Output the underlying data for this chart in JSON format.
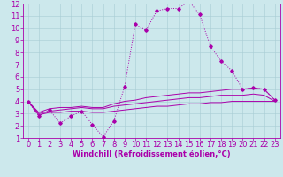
{
  "title": "",
  "xlabel": "Windchill (Refroidissement éolien,°C)",
  "ylabel": "",
  "bg_color": "#cce8ec",
  "line_color": "#aa00aa",
  "xlim": [
    -0.5,
    23.5
  ],
  "ylim": [
    1,
    12
  ],
  "xticks": [
    0,
    1,
    2,
    3,
    4,
    5,
    6,
    7,
    8,
    9,
    10,
    11,
    12,
    13,
    14,
    15,
    16,
    17,
    18,
    19,
    20,
    21,
    22,
    23
  ],
  "yticks": [
    1,
    2,
    3,
    4,
    5,
    6,
    7,
    8,
    9,
    10,
    11,
    12
  ],
  "line1_x": [
    0,
    1,
    2,
    3,
    4,
    5,
    6,
    7,
    8,
    9,
    10,
    11,
    12,
    13,
    14,
    15,
    16,
    17,
    18,
    19,
    20,
    21,
    22,
    23
  ],
  "line1_y": [
    4.0,
    2.8,
    3.3,
    2.2,
    2.8,
    3.2,
    2.1,
    1.1,
    2.4,
    5.2,
    10.3,
    9.8,
    11.4,
    11.6,
    11.6,
    12.2,
    11.1,
    8.5,
    7.3,
    6.5,
    5.0,
    5.1,
    5.0,
    4.1
  ],
  "line2_x": [
    0,
    1,
    2,
    3,
    4,
    5,
    6,
    7,
    8,
    9,
    10,
    11,
    12,
    13,
    14,
    15,
    16,
    17,
    18,
    19,
    20,
    21,
    22,
    23
  ],
  "line2_y": [
    4.0,
    3.1,
    3.4,
    3.5,
    3.5,
    3.6,
    3.5,
    3.5,
    3.8,
    4.0,
    4.1,
    4.3,
    4.4,
    4.5,
    4.6,
    4.7,
    4.7,
    4.8,
    4.9,
    5.0,
    5.0,
    5.1,
    5.0,
    4.1
  ],
  "line3_x": [
    0,
    1,
    2,
    3,
    4,
    5,
    6,
    7,
    8,
    9,
    10,
    11,
    12,
    13,
    14,
    15,
    16,
    17,
    18,
    19,
    20,
    21,
    22,
    23
  ],
  "line3_y": [
    4.0,
    3.0,
    3.2,
    3.3,
    3.4,
    3.5,
    3.4,
    3.4,
    3.6,
    3.7,
    3.8,
    3.9,
    4.0,
    4.1,
    4.2,
    4.3,
    4.3,
    4.4,
    4.5,
    4.5,
    4.5,
    4.6,
    4.5,
    4.0
  ],
  "line4_x": [
    0,
    1,
    2,
    3,
    4,
    5,
    6,
    7,
    8,
    9,
    10,
    11,
    12,
    13,
    14,
    15,
    16,
    17,
    18,
    19,
    20,
    21,
    22,
    23
  ],
  "line4_y": [
    4.0,
    2.9,
    3.1,
    3.1,
    3.2,
    3.2,
    3.1,
    3.1,
    3.2,
    3.3,
    3.4,
    3.5,
    3.6,
    3.6,
    3.7,
    3.8,
    3.8,
    3.9,
    3.9,
    4.0,
    4.0,
    4.0,
    4.0,
    4.0
  ],
  "tick_fontsize": 6,
  "xlabel_fontsize": 6
}
